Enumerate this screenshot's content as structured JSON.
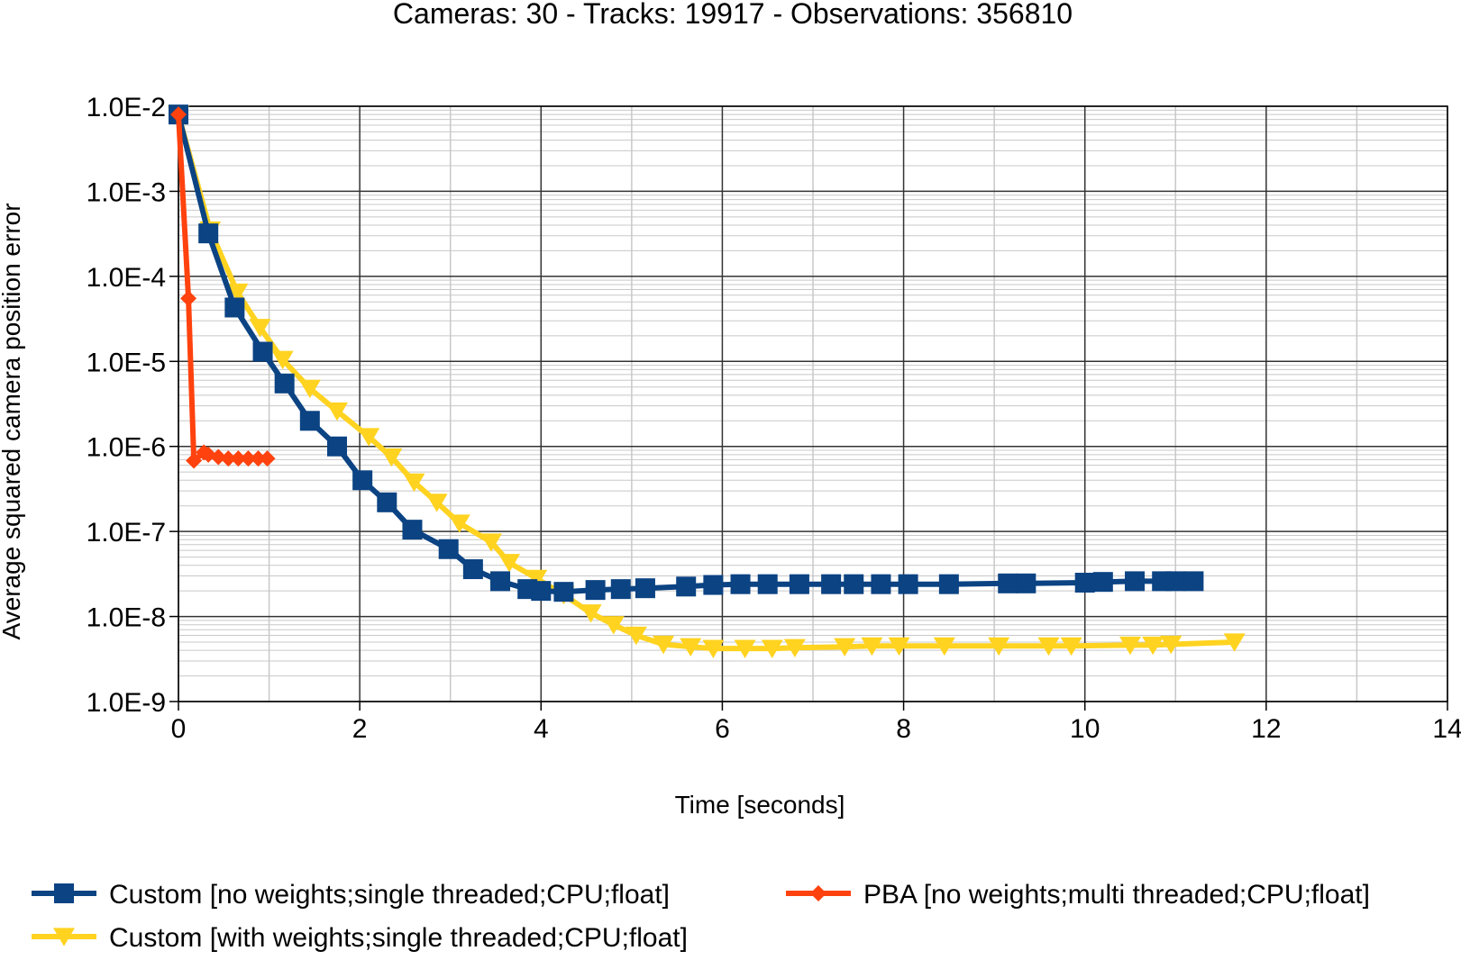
{
  "chart_data": {
    "type": "line",
    "title": "Cameras: 30 - Tracks: 19917 - Observations: 356810",
    "xlabel": "Time [seconds]",
    "ylabel": "Average squared camera position error",
    "xlim": [
      0,
      14
    ],
    "ylim": [
      1e-09,
      0.01
    ],
    "yscale": "log",
    "x_ticks": [
      0,
      2,
      4,
      6,
      8,
      10,
      12,
      14
    ],
    "x_tick_labels": [
      "0",
      "2",
      "4",
      "6",
      "8",
      "10",
      "12",
      "14"
    ],
    "y_ticks": [
      0.01,
      0.001,
      0.0001,
      1e-05,
      1e-06,
      1e-07,
      1e-08,
      1e-09
    ],
    "y_tick_labels": [
      "1.0E-2",
      "1.0E-3",
      "1.0E-4",
      "1.0E-5",
      "1.0E-6",
      "1.0E-7",
      "1.0E-8",
      "1.0E-9"
    ],
    "grid": true,
    "legend_position": "bottom",
    "series": [
      {
        "name": "Custom [no weights;single threaded;CPU;float]",
        "color": "#0b4383",
        "marker": "square",
        "x": [
          0.0,
          0.33,
          0.62,
          0.93,
          1.17,
          1.45,
          1.75,
          2.03,
          2.3,
          2.58,
          2.98,
          3.25,
          3.55,
          3.85,
          4.0,
          4.25,
          4.6,
          4.88,
          5.15,
          5.6,
          5.9,
          6.2,
          6.5,
          6.85,
          7.2,
          7.45,
          7.75,
          8.05,
          8.5,
          9.15,
          9.35,
          10.0,
          10.2,
          10.55,
          10.85,
          11.0,
          11.2
        ],
        "y": [
          0.008,
          0.00032,
          4.3e-05,
          1.3e-05,
          5.5e-06,
          2e-06,
          1e-06,
          4e-07,
          2.2e-07,
          1.05e-07,
          6.2e-08,
          3.6e-08,
          2.6e-08,
          2.1e-08,
          2e-08,
          1.95e-08,
          2.05e-08,
          2.1e-08,
          2.15e-08,
          2.25e-08,
          2.35e-08,
          2.4e-08,
          2.4e-08,
          2.4e-08,
          2.4e-08,
          2.4e-08,
          2.4e-08,
          2.4e-08,
          2.4e-08,
          2.45e-08,
          2.45e-08,
          2.5e-08,
          2.55e-08,
          2.6e-08,
          2.6e-08,
          2.6e-08,
          2.6e-08
        ]
      },
      {
        "name": "PBA [no weights;multi threaded;CPU;float]",
        "color": "#ff420e",
        "marker": "diamond",
        "x": [
          0.0,
          0.11,
          0.17,
          0.28,
          0.33,
          0.44,
          0.55,
          0.66,
          0.77,
          0.88,
          0.98
        ],
        "y": [
          0.008,
          5.5e-05,
          6.8e-07,
          8.5e-07,
          8e-07,
          7.5e-07,
          7.2e-07,
          7.2e-07,
          7.2e-07,
          7.2e-07,
          7.2e-07
        ]
      },
      {
        "name": "Custom [with weights;single threaded;CPU;float]",
        "color": "#ffd320",
        "marker": "triangle-down",
        "x": [
          0.0,
          0.35,
          0.65,
          0.9,
          1.15,
          1.45,
          1.75,
          2.1,
          2.35,
          2.6,
          2.85,
          3.1,
          3.45,
          3.65,
          3.95,
          4.25,
          4.55,
          4.8,
          5.05,
          5.35,
          5.65,
          5.9,
          6.25,
          6.55,
          6.8,
          7.35,
          7.65,
          7.95,
          8.45,
          9.05,
          9.6,
          9.85,
          10.5,
          10.75,
          10.95,
          11.65
        ],
        "y": [
          0.008,
          0.00035,
          6.5e-05,
          2.5e-05,
          1.05e-05,
          4.8e-06,
          2.6e-06,
          1.3e-06,
          7.5e-07,
          3.8e-07,
          2.2e-07,
          1.25e-07,
          7.5e-08,
          4.3e-08,
          2.8e-08,
          1.8e-08,
          1.1e-08,
          8e-09,
          6e-09,
          4.7e-09,
          4.4e-09,
          4.2e-09,
          4.2e-09,
          4.2e-09,
          4.3e-09,
          4.4e-09,
          4.5e-09,
          4.5e-09,
          4.5e-09,
          4.5e-09,
          4.5e-09,
          4.5e-09,
          4.6e-09,
          4.6e-09,
          4.7e-09,
          5e-09
        ]
      }
    ],
    "legend": [
      {
        "label": "Custom [no weights;single threaded;CPU;float]",
        "color": "#0b4383",
        "marker": "square"
      },
      {
        "label": "PBA [no weights;multi threaded;CPU;float]",
        "color": "#ff420e",
        "marker": "diamond"
      },
      {
        "label": "Custom [with weights;single threaded;CPU;float]",
        "color": "#ffd320",
        "marker": "triangle-down"
      }
    ]
  }
}
